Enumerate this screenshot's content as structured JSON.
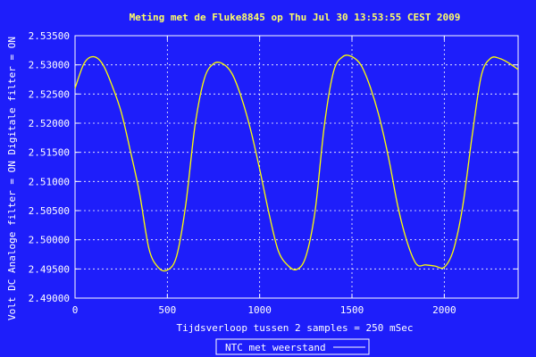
{
  "chart_data": {
    "type": "line",
    "title": "Meting met de Fluke8845 op Thu Jul 30 13:53:55 CEST 2009",
    "xlabel": "Tijdsverloop tussen 2 samples = 250 mSec",
    "ylabel": "Volt DC    Analoge filter = ON    Digitale filter = ON",
    "xlim": [
      0,
      2400
    ],
    "ylim": [
      2.49,
      2.535
    ],
    "x_ticks": [
      0,
      500,
      1000,
      1500,
      2000
    ],
    "x_tick_labels": [
      "0",
      "500",
      "1000",
      "1500",
      "2000"
    ],
    "y_ticks": [
      2.49,
      2.495,
      2.5,
      2.505,
      2.51,
      2.515,
      2.52,
      2.525,
      2.53,
      2.535
    ],
    "y_tick_labels": [
      "2.49000",
      "2.49500",
      "2.50000",
      "2.50500",
      "2.51000",
      "2.51500",
      "2.52000",
      "2.52500",
      "2.53000",
      "2.53500"
    ],
    "grid": true,
    "legend_position": "bottom-center",
    "colors": {
      "background": "#1e1efa",
      "plot_border": "#ffffff",
      "grid": "#ffffff",
      "title": "#ffff66",
      "series": "#ffff00"
    },
    "series": [
      {
        "name": "NTC met weerstand",
        "x": [
          0,
          50,
          100,
          150,
          200,
          250,
          300,
          350,
          400,
          450,
          500,
          550,
          600,
          650,
          700,
          750,
          800,
          850,
          900,
          950,
          1000,
          1050,
          1100,
          1150,
          1200,
          1250,
          1300,
          1350,
          1400,
          1450,
          1500,
          1550,
          1600,
          1650,
          1700,
          1750,
          1800,
          1850,
          1900,
          1950,
          2000,
          2050,
          2100,
          2150,
          2200,
          2250,
          2300,
          2350,
          2400
        ],
        "values": [
          2.526,
          2.5303,
          2.5314,
          2.5301,
          2.5265,
          2.5219,
          2.5152,
          2.5079,
          2.4985,
          2.4953,
          2.4948,
          2.4972,
          2.5061,
          2.5196,
          2.5276,
          2.5302,
          2.5302,
          2.5285,
          2.5245,
          2.519,
          2.5121,
          2.5046,
          2.4982,
          2.4957,
          2.4949,
          2.4971,
          2.5049,
          2.5195,
          2.5288,
          2.5314,
          2.5314,
          2.5299,
          2.5261,
          2.5208,
          2.5138,
          2.5055,
          2.4995,
          2.4958,
          2.4957,
          2.4955,
          2.4953,
          2.4983,
          2.5058,
          2.5176,
          2.5281,
          2.5311,
          2.5311,
          2.5303,
          2.5292
        ]
      }
    ]
  }
}
